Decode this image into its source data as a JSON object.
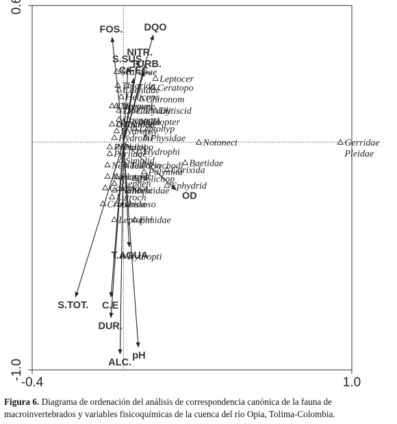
{
  "caption": {
    "label": "Figura 6.",
    "text": "Diagrama de ordenación del análisis de correspondencia canónica de la fauna de macroinvertebrados y variables fisicoquímicas de la cuenca del río Opia, Tolima-Colombia."
  },
  "chart_data": {
    "type": "scatter",
    "title": "",
    "xlabel": "",
    "ylabel": "",
    "xlim": [
      -0.4,
      1.0
    ],
    "ylim": [
      -1.0,
      0.6
    ],
    "xticks": [
      "-0.4",
      "1.0"
    ],
    "yticks": [
      "0.6",
      "-1.0"
    ],
    "grid": false,
    "reference_lines": "dotted lines through origin",
    "env_vectors": [
      {
        "name": "FOS.",
        "x": -0.05,
        "y": 0.46
      },
      {
        "name": "DQO",
        "x": 0.13,
        "y": 0.47
      },
      {
        "name": "NITR.",
        "x": 0.065,
        "y": 0.36
      },
      {
        "name": "S.SUS.",
        "x": 0.02,
        "y": 0.33
      },
      {
        "name": "C.FEC.",
        "x": 0.045,
        "y": 0.28
      },
      {
        "name": "TURB.",
        "x": 0.09,
        "y": 0.31
      },
      {
        "name": "OD",
        "x": 0.23,
        "y": -0.21
      },
      {
        "name": "T.AGUA",
        "x": 0.025,
        "y": -0.46
      },
      {
        "name": "C.E",
        "x": -0.055,
        "y": -0.68
      },
      {
        "name": "S.TOT.",
        "x": -0.21,
        "y": -0.68
      },
      {
        "name": "DUR.",
        "x": -0.055,
        "y": -0.77
      },
      {
        "name": "pH",
        "x": 0.065,
        "y": -0.9
      },
      {
        "name": "ALC.",
        "x": -0.015,
        "y": -0.93
      }
    ],
    "species": [
      {
        "name": "Gerridae",
        "x": 0.95,
        "y": 0.0
      },
      {
        "name": "Pleidae",
        "x": 0.95,
        "y": 0.0
      },
      {
        "name": "Notonect",
        "x": 0.33,
        "y": 0.0
      },
      {
        "name": "Scarabae",
        "x": -0.03,
        "y": 0.31
      },
      {
        "name": "Thiarida",
        "x": -0.025,
        "y": 0.25
      },
      {
        "name": "Caenidae",
        "x": -0.02,
        "y": 0.23
      },
      {
        "name": "Leptocer",
        "x": 0.14,
        "y": 0.28
      },
      {
        "name": "Ceratopo",
        "x": 0.13,
        "y": 0.24
      },
      {
        "name": "Helicops",
        "x": -0.01,
        "y": 0.2
      },
      {
        "name": "Chironom",
        "x": 0.08,
        "y": 0.19
      },
      {
        "name": "Chrysome",
        "x": -0.05,
        "y": 0.16
      },
      {
        "name": "Mesovel",
        "x": -0.03,
        "y": 0.16
      },
      {
        "name": "Corydali",
        "x": 0.04,
        "y": 0.14
      },
      {
        "name": "Dytiscid",
        "x": 0.14,
        "y": 0.14
      },
      {
        "name": "Libellul",
        "x": -0.02,
        "y": 0.14
      },
      {
        "name": "Coenagri",
        "x": -0.02,
        "y": 0.1
      },
      {
        "name": "Hyalella",
        "x": 0.0,
        "y": 0.09
      },
      {
        "name": "Odontoce",
        "x": -0.05,
        "y": 0.08
      },
      {
        "name": "Tipulida",
        "x": -0.02,
        "y": 0.08
      },
      {
        "name": "Calopter",
        "x": 0.08,
        "y": 0.09
      },
      {
        "name": "Hydropsy",
        "x": -0.03,
        "y": 0.05
      },
      {
        "name": "Leptohyp",
        "x": 0.05,
        "y": 0.06
      },
      {
        "name": "Hydrobii",
        "x": -0.04,
        "y": 0.02
      },
      {
        "name": "Physidae",
        "x": 0.1,
        "y": 0.02
      },
      {
        "name": "Planarii",
        "x": -0.06,
        "y": -0.02
      },
      {
        "name": "Philopo",
        "x": -0.02,
        "y": -0.02
      },
      {
        "name": "Hydrophi",
        "x": 0.07,
        "y": -0.04
      },
      {
        "name": "Perlidae",
        "x": -0.06,
        "y": -0.05
      },
      {
        "name": "Simulid",
        "x": -0.01,
        "y": -0.08
      },
      {
        "name": "Baetidae",
        "x": 0.27,
        "y": -0.09
      },
      {
        "name": "Psychodi",
        "x": 0.09,
        "y": -0.1
      },
      {
        "name": "Nepidae",
        "x": -0.07,
        "y": -0.1
      },
      {
        "name": "Teleorio",
        "x": 0.01,
        "y": -0.1
      },
      {
        "name": "Polymita",
        "x": 0.09,
        "y": -0.13
      },
      {
        "name": "Corixida",
        "x": 0.19,
        "y": -0.12
      },
      {
        "name": "Naucorid",
        "x": -0.07,
        "y": -0.15
      },
      {
        "name": "Platystr",
        "x": -0.03,
        "y": -0.15
      },
      {
        "name": "Dolichop",
        "x": 0.05,
        "y": -0.16
      },
      {
        "name": "Psephen",
        "x": -0.04,
        "y": -0.18
      },
      {
        "name": "Ephydrid",
        "x": 0.19,
        "y": -0.19
      },
      {
        "name": "Calamoce",
        "x": -0.08,
        "y": -0.2
      },
      {
        "name": "Planorbi",
        "x": -0.04,
        "y": -0.21
      },
      {
        "name": "Muscidae",
        "x": 0.02,
        "y": -0.21
      },
      {
        "name": "Lutroch",
        "x": -0.05,
        "y": -0.24
      },
      {
        "name": "Crambida",
        "x": -0.09,
        "y": -0.27
      },
      {
        "name": "Glossoso",
        "x": -0.03,
        "y": -0.27
      },
      {
        "name": "Leptophl",
        "x": -0.04,
        "y": -0.34
      },
      {
        "name": "Elmidae",
        "x": 0.05,
        "y": -0.34
      },
      {
        "name": "Hydropti",
        "x": 0.0,
        "y": -0.5
      }
    ]
  }
}
